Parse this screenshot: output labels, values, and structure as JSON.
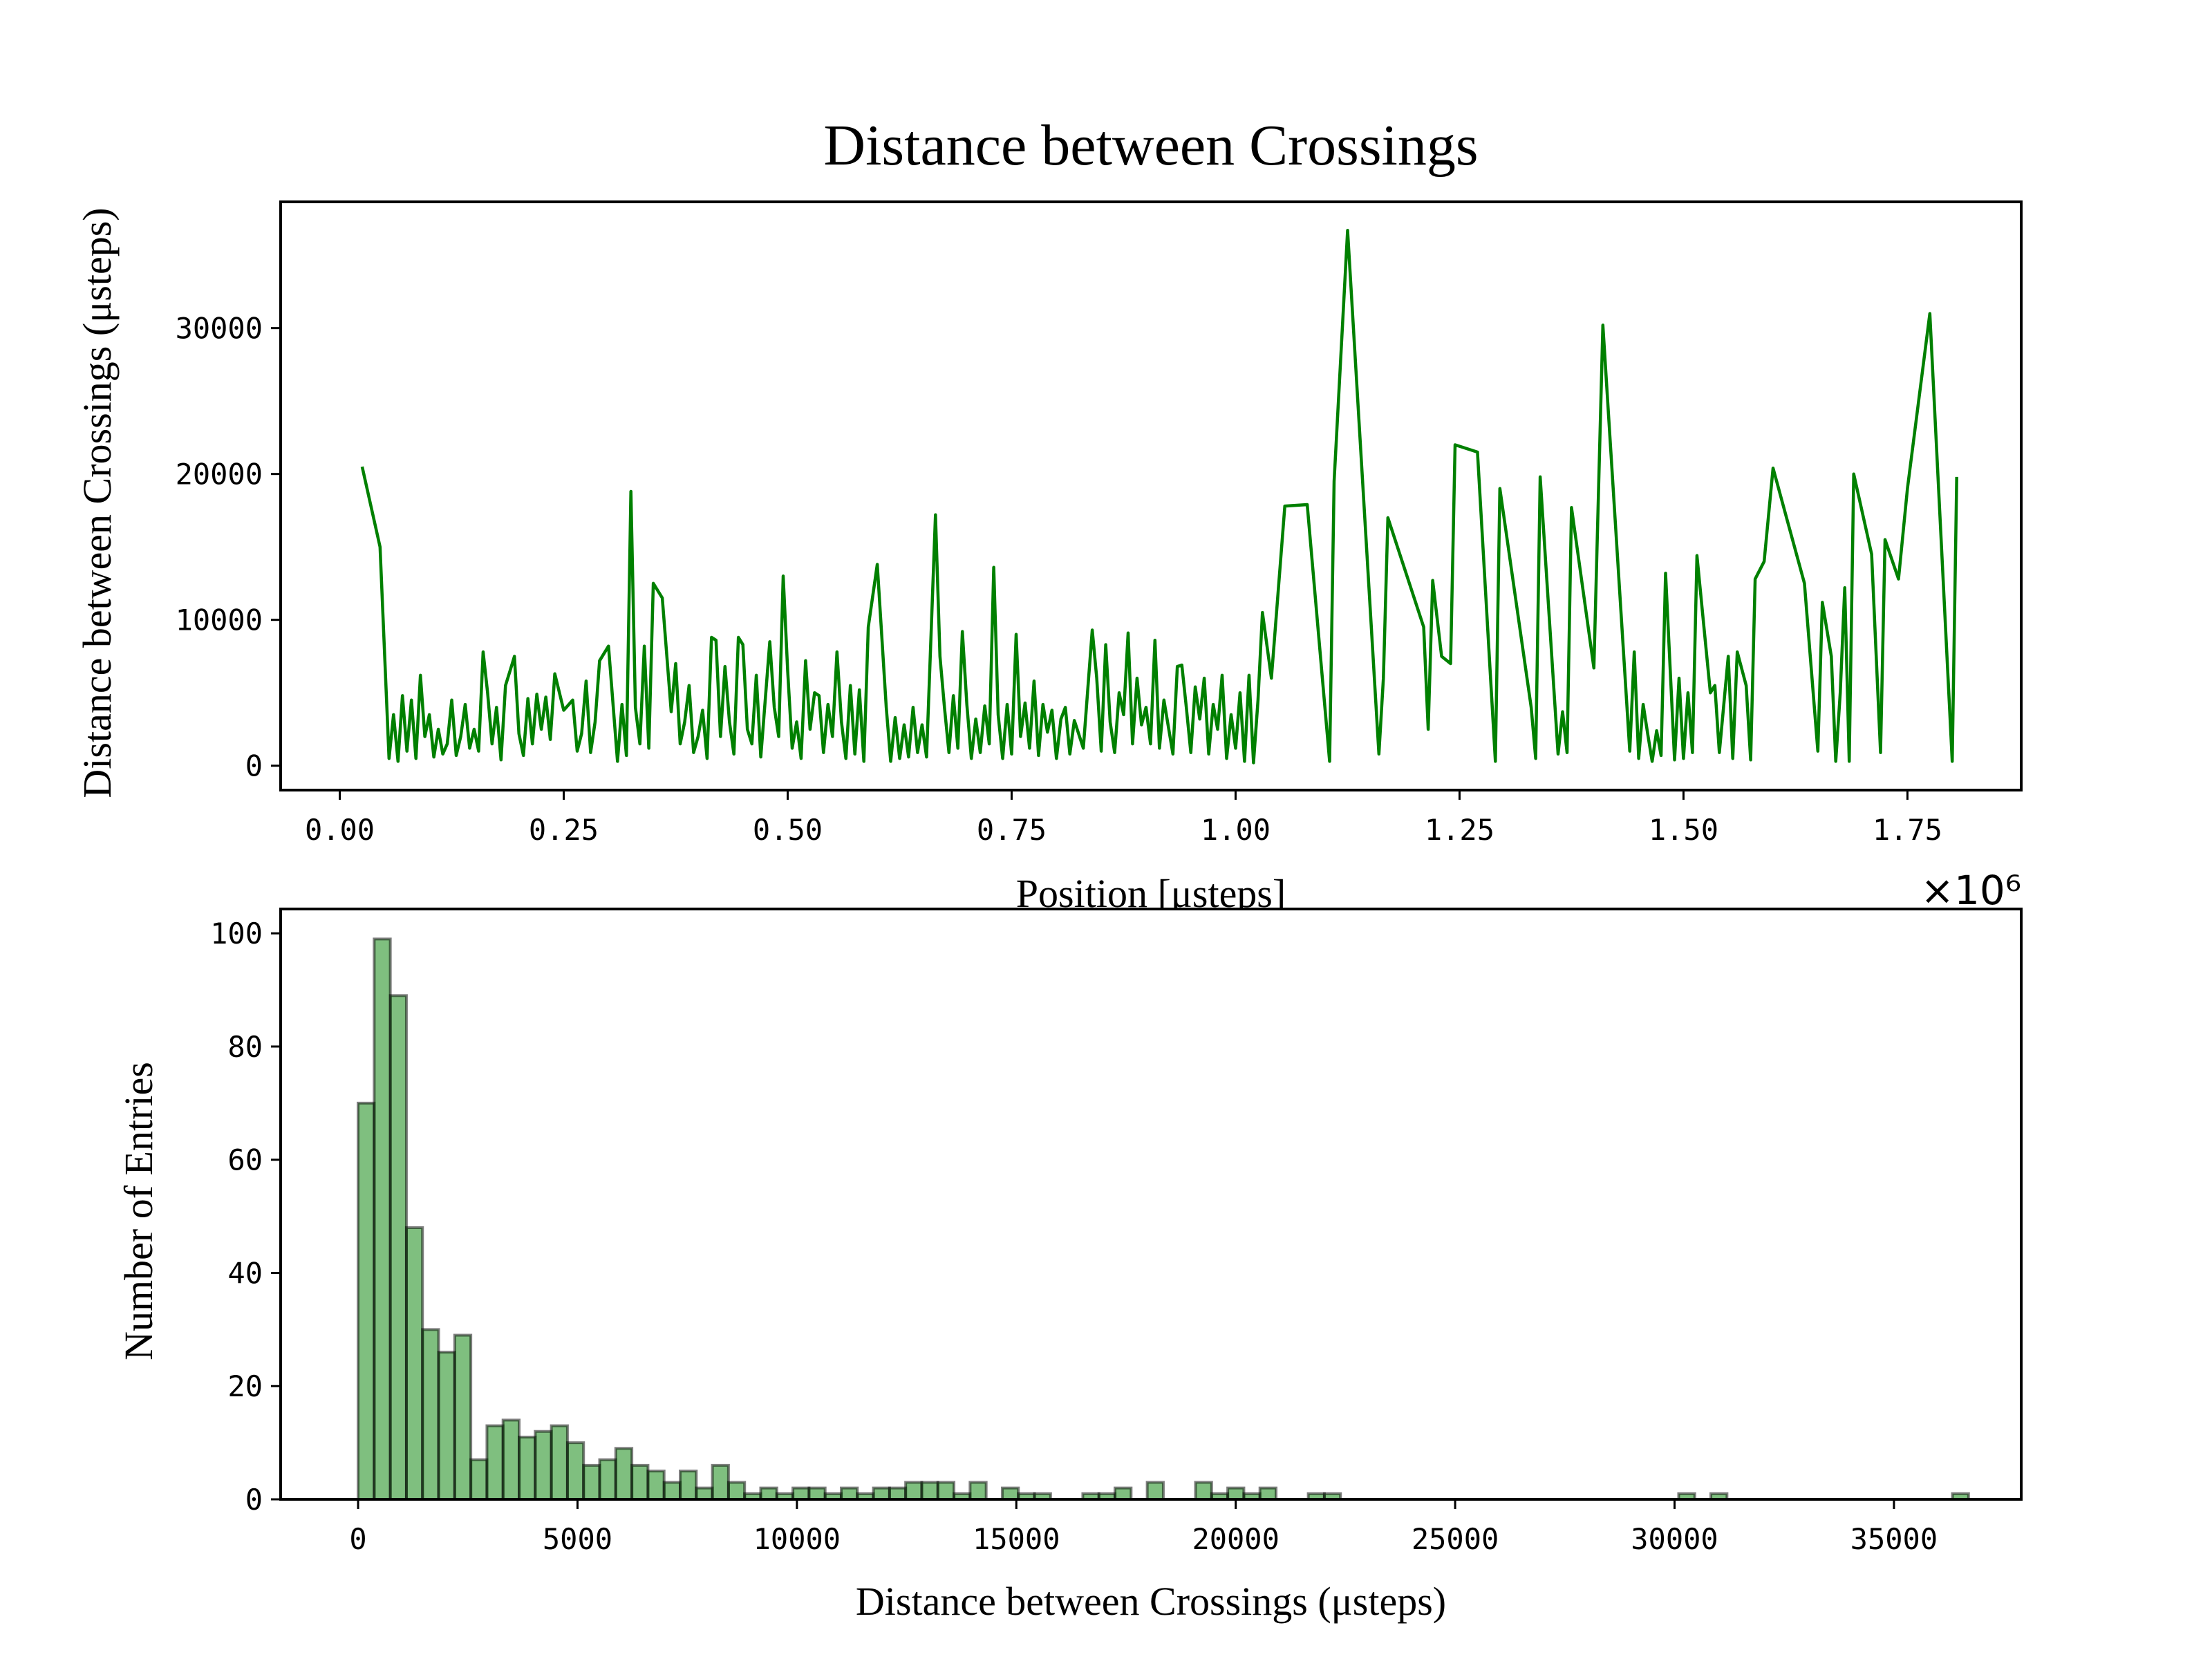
{
  "chart_data": [
    {
      "type": "line",
      "title": "Distance between Crossings",
      "xlabel": "Position [μsteps]",
      "ylabel": "Distance between Crossings (μsteps)",
      "x_offset_label": "×10⁶",
      "color": "green",
      "xlim": [
        -0.066,
        1.877
      ],
      "ylim": [
        -1672,
        38656
      ],
      "xticks": [
        {
          "value": 0,
          "label": "0.00"
        },
        0.25,
        {
          "value": 0.5,
          "label": "0.50"
        },
        0.75,
        {
          "value": 1,
          "label": "1.00"
        },
        1.25,
        {
          "value": 1.5,
          "label": "1.50"
        },
        1.75
      ],
      "yticks": [
        0,
        10000,
        20000,
        30000
      ],
      "x": [
        0.025,
        0.045,
        0.055,
        0.06,
        0.065,
        0.07,
        0.075,
        0.08,
        0.085,
        0.09,
        0.095,
        0.1,
        0.105,
        0.11,
        0.115,
        0.12,
        0.125,
        0.13,
        0.135,
        0.14,
        0.145,
        0.15,
        0.155,
        0.16,
        0.165,
        0.17,
        0.175,
        0.18,
        0.185,
        0.19,
        0.195,
        0.2,
        0.205,
        0.21,
        0.215,
        0.22,
        0.225,
        0.23,
        0.235,
        0.24,
        0.25,
        0.26,
        0.265,
        0.27,
        0.275,
        0.28,
        0.285,
        0.29,
        0.3,
        0.31,
        0.315,
        0.32,
        0.325,
        0.33,
        0.335,
        0.34,
        0.345,
        0.35,
        0.36,
        0.37,
        0.375,
        0.38,
        0.385,
        0.39,
        0.395,
        0.4,
        0.405,
        0.41,
        0.415,
        0.42,
        0.425,
        0.43,
        0.435,
        0.44,
        0.445,
        0.45,
        0.455,
        0.46,
        0.465,
        0.47,
        0.48,
        0.485,
        0.49,
        0.495,
        0.5,
        0.505,
        0.51,
        0.515,
        0.52,
        0.525,
        0.53,
        0.535,
        0.54,
        0.545,
        0.55,
        0.555,
        0.56,
        0.565,
        0.57,
        0.575,
        0.58,
        0.585,
        0.59,
        0.6,
        0.61,
        0.615,
        0.62,
        0.625,
        0.63,
        0.635,
        0.64,
        0.645,
        0.65,
        0.655,
        0.665,
        0.67,
        0.675,
        0.68,
        0.685,
        0.69,
        0.695,
        0.7,
        0.705,
        0.71,
        0.715,
        0.72,
        0.725,
        0.73,
        0.735,
        0.74,
        0.745,
        0.75,
        0.755,
        0.76,
        0.765,
        0.77,
        0.775,
        0.78,
        0.785,
        0.79,
        0.795,
        0.8,
        0.805,
        0.81,
        0.815,
        0.82,
        0.83,
        0.84,
        0.845,
        0.85,
        0.855,
        0.86,
        0.865,
        0.87,
        0.875,
        0.88,
        0.885,
        0.89,
        0.895,
        0.9,
        0.905,
        0.91,
        0.915,
        0.92,
        0.93,
        0.935,
        0.94,
        0.945,
        0.95,
        0.955,
        0.96,
        0.965,
        0.97,
        0.975,
        0.98,
        0.985,
        0.99,
        0.995,
        1.0,
        1.005,
        1.01,
        1.015,
        1.02,
        1.025,
        1.03,
        1.04,
        1.055,
        1.08,
        1.105,
        1.11,
        1.125,
        1.16,
        1.165,
        1.17,
        1.21,
        1.215,
        1.22,
        1.23,
        1.24,
        1.245,
        1.27,
        1.29,
        1.295,
        1.33,
        1.335,
        1.34,
        1.36,
        1.365,
        1.37,
        1.375,
        1.4,
        1.41,
        1.44,
        1.445,
        1.45,
        1.455,
        1.46,
        1.465,
        1.47,
        1.475,
        1.48,
        1.49,
        1.495,
        1.5,
        1.505,
        1.51,
        1.515,
        1.53,
        1.535,
        1.54,
        1.55,
        1.555,
        1.56,
        1.57,
        1.575,
        1.58,
        1.59,
        1.6,
        1.615,
        1.635,
        1.65,
        1.655,
        1.665,
        1.67,
        1.675,
        1.68,
        1.685,
        1.69,
        1.71,
        1.72,
        1.725,
        1.74,
        1.75,
        1.775,
        1.8,
        1.805
      ],
      "values": [
        20500,
        15000,
        500,
        3500,
        300,
        4800,
        1000,
        4500,
        500,
        6200,
        2000,
        3500,
        600,
        2500,
        800,
        1500,
        4500,
        700,
        2000,
        4200,
        1200,
        2500,
        1000,
        7800,
        5000,
        1500,
        4000,
        400,
        5500,
        6500,
        7500,
        2200,
        700,
        4600,
        1500,
        4900,
        2500,
        4700,
        1800,
        6300,
        3800,
        4500,
        1000,
        2200,
        5800,
        900,
        3000,
        7200,
        8200,
        300,
        4200,
        700,
        18800,
        4000,
        1500,
        8200,
        1200,
        12500,
        11500,
        3700,
        7000,
        1500,
        3000,
        5500,
        900,
        2000,
        3800,
        500,
        8800,
        8600,
        2000,
        6800,
        3000,
        800,
        8800,
        8300,
        2500,
        1500,
        6200,
        600,
        8500,
        4000,
        2000,
        13000,
        6500,
        1200,
        3000,
        500,
        7200,
        2500,
        5000,
        4800,
        900,
        4200,
        2000,
        7800,
        3000,
        500,
        5500,
        800,
        5200,
        300,
        9500,
        13800,
        4000,
        300,
        3300,
        500,
        2800,
        600,
        4000,
        900,
        2800,
        600,
        17200,
        7500,
        4000,
        900,
        4800,
        1200,
        9200,
        4200,
        500,
        3200,
        900,
        4100,
        1500,
        13600,
        3500,
        500,
        4200,
        800,
        9000,
        2000,
        4300,
        1200,
        5800,
        700,
        4200,
        2300,
        3800,
        500,
        3200,
        4000,
        800,
        3100,
        1200,
        9300,
        6000,
        1000,
        8300,
        3000,
        900,
        5000,
        3500,
        9100,
        1500,
        6000,
        2800,
        4000,
        1500,
        8600,
        1200,
        4500,
        800,
        6800,
        6900,
        4000,
        900,
        5400,
        3200,
        6000,
        800,
        4200,
        2500,
        6200,
        500,
        3500,
        1200,
        5000,
        300,
        6200,
        200,
        4500,
        10500,
        6000,
        17800,
        17900,
        300,
        19500,
        36700,
        800,
        6000,
        17000,
        9500,
        2500,
        12700,
        7500,
        7000,
        22000,
        21500,
        300,
        19000,
        4000,
        500,
        19800,
        800,
        3700,
        900,
        17700,
        6700,
        30200,
        1000,
        7800,
        500,
        4200,
        2200,
        300,
        2400,
        700,
        13200,
        400,
        6000,
        500,
        5000,
        900,
        14400,
        5000,
        5500,
        900,
        7500,
        500,
        7800,
        5500,
        400,
        12800,
        14000,
        20400,
        17000,
        12500,
        1000,
        11200,
        7500,
        300,
        5000,
        12200,
        300,
        20000,
        14500,
        900,
        15500,
        12800,
        19000,
        31000,
        300,
        19800
      ]
    },
    {
      "type": "histogram",
      "xlabel": "Distance between Crossings (μsteps)",
      "ylabel": "Number of Entries",
      "color": "green",
      "edgecolor": "black",
      "xlim": [
        -1765,
        37900
      ],
      "ylim": [
        0,
        104.3
      ],
      "xticks": [
        0,
        5000,
        10000,
        15000,
        20000,
        25000,
        30000,
        35000
      ],
      "yticks": [
        0,
        20,
        40,
        60,
        80,
        100
      ],
      "bins": [
        0,
        367,
        734,
        1101,
        1468,
        1835,
        2202,
        2569,
        2936,
        3303,
        3670,
        4037,
        4404,
        4771,
        5138,
        5505,
        5872,
        6239,
        6606,
        6973,
        7340,
        7707,
        8074,
        8441,
        8808,
        9175,
        9542,
        9909,
        10276,
        10643,
        11010,
        11377,
        11744,
        12111,
        12478,
        12845,
        13212,
        13579,
        13946,
        14313,
        14680,
        15047,
        15414,
        15781,
        16148,
        16515,
        16882,
        17249,
        17616,
        17983,
        18350,
        18717,
        19084,
        19451,
        19818,
        20185,
        20552,
        20919,
        21286,
        21653,
        22020,
        22387,
        22754,
        23121,
        23488,
        23855,
        24222,
        24589,
        24956,
        25323,
        25690,
        26057,
        26424,
        26791,
        27158,
        27525,
        27892,
        28259,
        28626,
        28993,
        29360,
        29727,
        30094,
        30461,
        30828,
        31195,
        31562,
        31929,
        32296,
        32663,
        33030,
        33397,
        33764,
        34131,
        34498,
        34865,
        35232,
        35599,
        35966,
        36333,
        36700
      ],
      "values": [
        70,
        99,
        89,
        48,
        30,
        26,
        29,
        7,
        13,
        14,
        11,
        12,
        13,
        10,
        6,
        7,
        9,
        6,
        5,
        3,
        5,
        2,
        6,
        3,
        1,
        2,
        1,
        2,
        2,
        1,
        2,
        1,
        2,
        2,
        3,
        3,
        3,
        1,
        3,
        0,
        2,
        1,
        1,
        0,
        0,
        1,
        1,
        2,
        0,
        3,
        0,
        0,
        3,
        1,
        2,
        1,
        2,
        0,
        0,
        1,
        1,
        0,
        0,
        0,
        0,
        0,
        0,
        0,
        0,
        0,
        0,
        0,
        0,
        0,
        0,
        0,
        0,
        0,
        0,
        0,
        0,
        0,
        1,
        0,
        1,
        0,
        0,
        0,
        0,
        0,
        0,
        0,
        0,
        0,
        0,
        0,
        0,
        0,
        0,
        1
      ]
    }
  ]
}
